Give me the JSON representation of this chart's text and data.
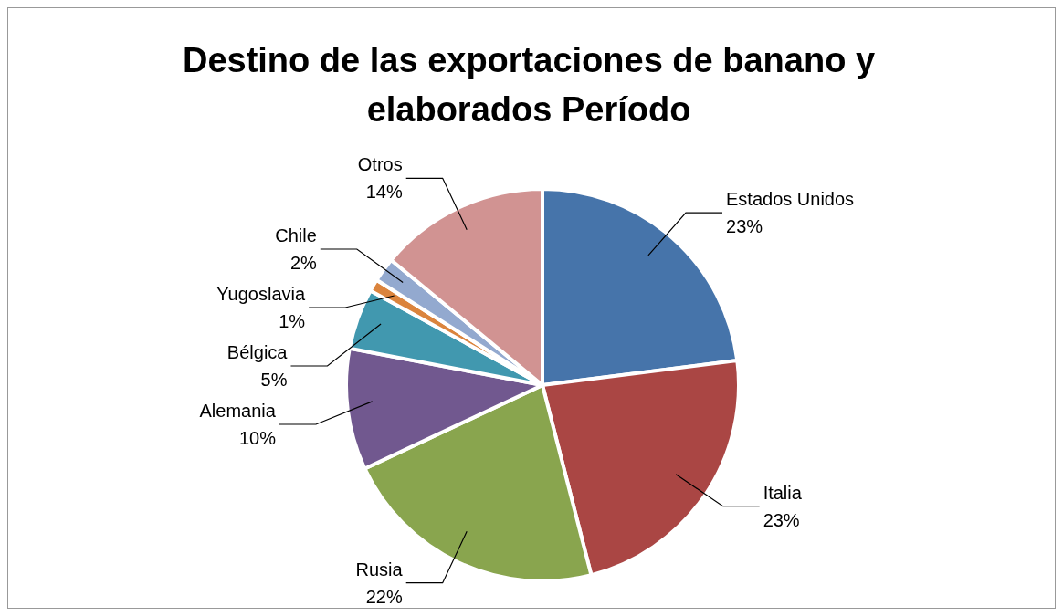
{
  "chart_data": {
    "type": "pie",
    "title": "Destino de las exportaciones de banano y elaborados Período",
    "categories": [
      "Estados Unidos",
      "Italia",
      "Rusia",
      "Alemania",
      "Bélgica",
      "Yugoslavia",
      "Chile",
      "Otros"
    ],
    "values": [
      23,
      23,
      22,
      10,
      5,
      1,
      2,
      14
    ],
    "value_labels": [
      "23%",
      "23%",
      "22%",
      "10%",
      "5%",
      "1%",
      "2%",
      "14%"
    ],
    "colors": [
      "#4674aa",
      "#aa4644",
      "#89a54e",
      "#71588f",
      "#4198af",
      "#db843d",
      "#93a9cf",
      "#d19392"
    ]
  }
}
